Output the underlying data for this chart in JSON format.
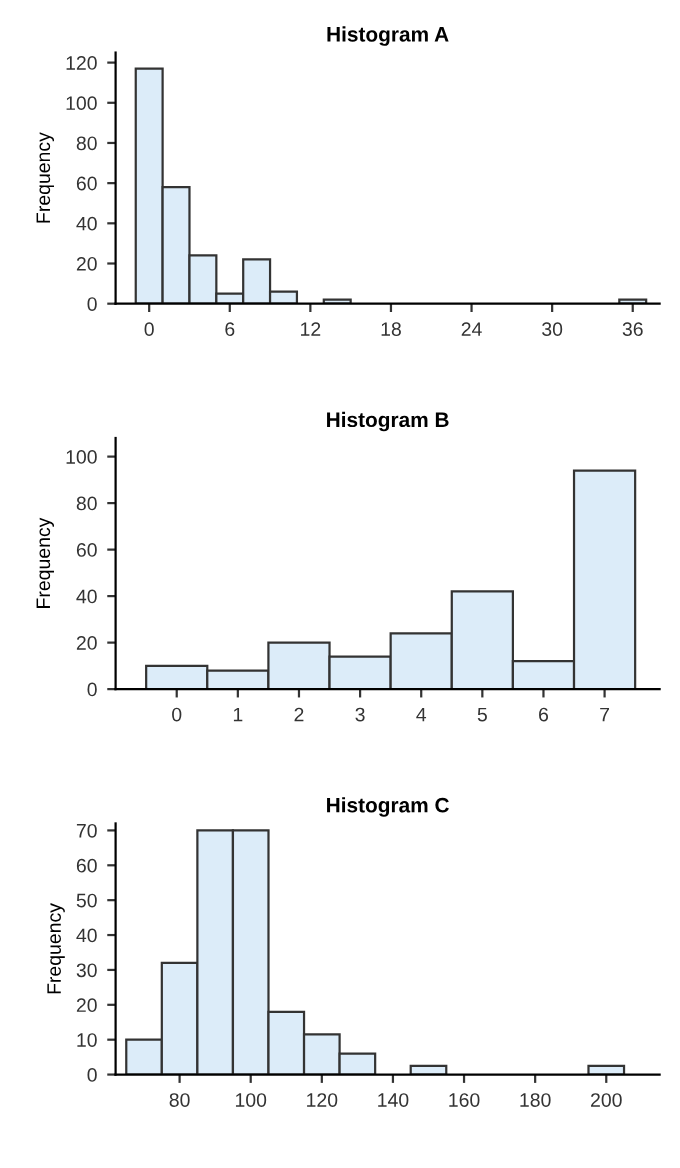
{
  "chart_data": [
    {
      "type": "histogram",
      "title": "Histogram A",
      "ylabel": "Frequency",
      "color": "#dcecf9",
      "bins": [
        -1,
        1,
        3,
        5,
        7,
        9,
        11,
        13,
        15,
        17,
        19,
        21,
        23,
        25,
        27,
        29,
        31,
        33,
        35,
        37
      ],
      "values": [
        117,
        58,
        24,
        5,
        22,
        6,
        0,
        2,
        0,
        0,
        0,
        0,
        0,
        0,
        0,
        0,
        0,
        0,
        2
      ],
      "xlim": [
        -2.5,
        38
      ],
      "ylim": [
        0,
        125
      ],
      "xticks": [
        0,
        6,
        12,
        18,
        24,
        30,
        36
      ],
      "yticks": [
        0,
        20,
        40,
        60,
        80,
        100,
        120
      ],
      "grid": false
    },
    {
      "type": "histogram",
      "title": "Histogram B",
      "ylabel": "Frequency",
      "color": "#dcecf9",
      "bins": [
        -0.5,
        0.5,
        1.5,
        2.5,
        3.5,
        4.5,
        5.5,
        6.5,
        7.5
      ],
      "values": [
        10,
        8,
        20,
        14,
        24,
        42,
        12,
        94
      ],
      "xlim": [
        -1,
        7.9
      ],
      "ylim": [
        0,
        108
      ],
      "xticks": [
        0,
        1,
        2,
        3,
        4,
        5,
        6,
        7
      ],
      "yticks": [
        0,
        20,
        40,
        60,
        80,
        100
      ],
      "grid": false
    },
    {
      "type": "histogram",
      "title": "Histogram C",
      "ylabel": "Frequency",
      "color": "#dcecf9",
      "bins": [
        65,
        75,
        85,
        95,
        105,
        115,
        125,
        135,
        145,
        155,
        165,
        175,
        185,
        195,
        205
      ],
      "values": [
        10,
        32,
        70,
        70,
        18,
        11.5,
        6,
        0,
        2.5,
        0,
        0,
        0,
        0,
        2.5
      ],
      "xlim": [
        62,
        215
      ],
      "ylim": [
        0,
        72
      ],
      "xticks": [
        80,
        100,
        120,
        140,
        160,
        180,
        200
      ],
      "yticks": [
        0,
        10,
        20,
        30,
        40,
        50,
        60,
        70
      ],
      "grid": false
    }
  ]
}
